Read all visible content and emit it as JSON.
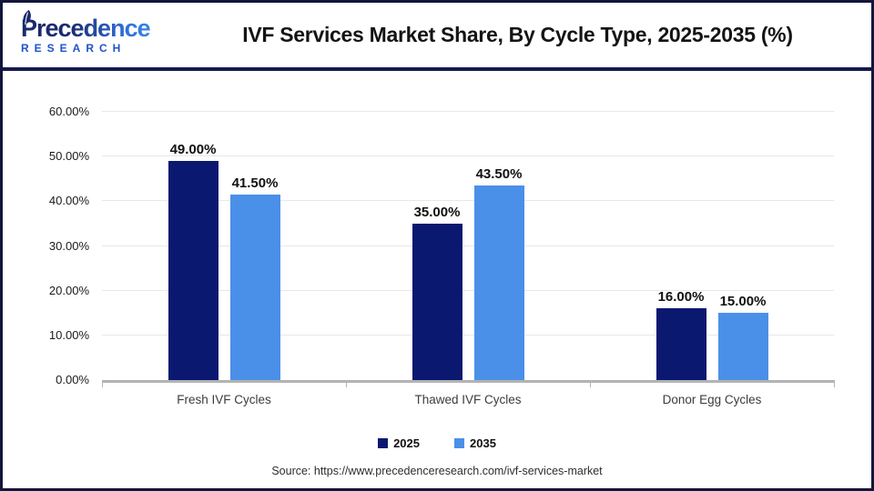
{
  "header": {
    "logo": {
      "name_line": "Precedence",
      "sub_line": "RESEARCH"
    },
    "title": "IVF Services Market Share, By Cycle Type, 2025-2035 (%)"
  },
  "chart_data": {
    "type": "bar",
    "title": "IVF Services Market Share, By Cycle Type, 2025-2035 (%)",
    "categories": [
      "Fresh IVF Cycles",
      "Thawed IVF Cycles",
      "Donor Egg Cycles"
    ],
    "series": [
      {
        "name": "2025",
        "color": "#0a1870",
        "values": [
          49.0,
          35.0,
          16.0
        ]
      },
      {
        "name": "2035",
        "color": "#4a90e8",
        "values": [
          41.5,
          43.5,
          15.0
        ]
      }
    ],
    "value_labels": [
      [
        "49.00%",
        "35.00%",
        "16.00%"
      ],
      [
        "41.50%",
        "43.50%",
        "15.00%"
      ]
    ],
    "ylim": [
      0,
      60
    ],
    "ytick_step": 10,
    "ytick_labels": [
      "0.00%",
      "10.00%",
      "20.00%",
      "30.00%",
      "40.00%",
      "50.00%",
      "60.00%"
    ],
    "grid": true,
    "legend_position": "bottom"
  },
  "footer": {
    "source": "Source: https://www.precedenceresearch.com/ivf-services-market"
  }
}
